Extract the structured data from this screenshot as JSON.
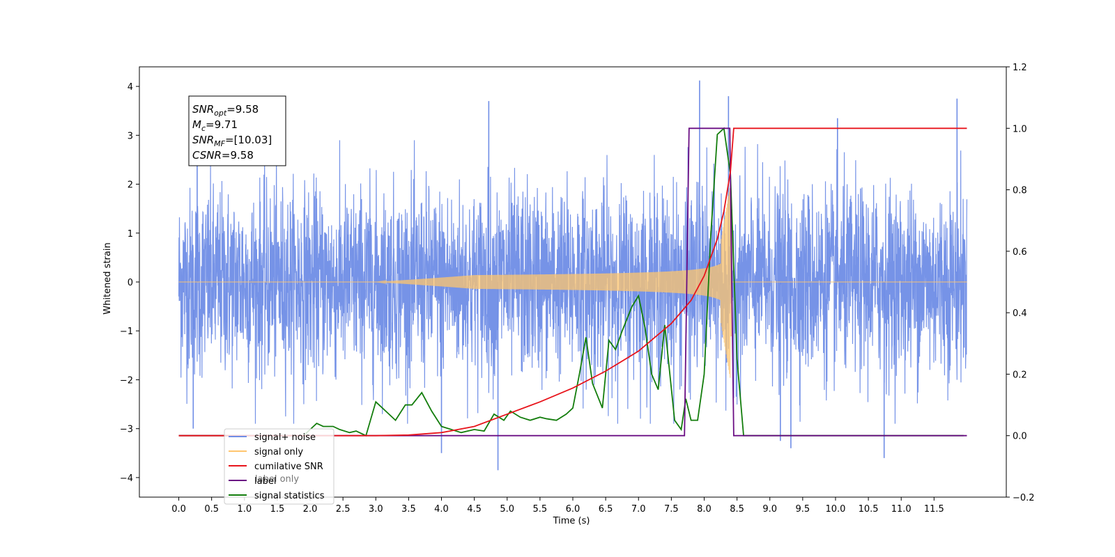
{
  "chart_data": {
    "type": "line",
    "xlabel": "Time (s)",
    "ylabel": "Whitened strain",
    "xlim": [
      -0.6,
      12.6
    ],
    "ylim": [
      -4.4,
      4.4
    ],
    "y2lim": [
      -0.2,
      1.2
    ],
    "x_ticks": [
      0.0,
      0.5,
      1.0,
      1.5,
      2.0,
      2.5,
      3.0,
      3.5,
      4.0,
      4.5,
      5.0,
      5.5,
      6.0,
      6.5,
      7.0,
      7.5,
      8.0,
      8.5,
      9.0,
      9.5,
      10.0,
      10.5,
      11.0,
      11.5
    ],
    "x_tick_labels": [
      "0.0",
      "0.5",
      "1.0",
      "1.5",
      "2.0",
      "2.5",
      "3.0",
      "3.5",
      "4.0",
      "4.5",
      "5.0",
      "5.5",
      "6.0",
      "6.5",
      "7.0",
      "7.5",
      "8.0",
      "8.5",
      "9.0",
      "9.5",
      "10.0",
      "10.5",
      "11.0",
      "11.5"
    ],
    "y_ticks": [
      -4,
      -3,
      -2,
      -1,
      0,
      1,
      2,
      3,
      4
    ],
    "y_tick_labels": [
      "−4",
      "−3",
      "−2",
      "−1",
      "0",
      "1",
      "2",
      "3",
      "4"
    ],
    "y2_ticks": [
      -0.2,
      0.0,
      0.2,
      0.4,
      0.6,
      0.8,
      1.0,
      1.2
    ],
    "y2_tick_labels": [
      "−0.2",
      "0.0",
      "0.2",
      "0.4",
      "0.6",
      "0.8",
      "1.0",
      "1.2"
    ],
    "legend_position": "lower-left",
    "legend": [
      {
        "label": "signal+ noise",
        "color": "#6f8de6"
      },
      {
        "label": "signal only",
        "color": "#ffc56e"
      },
      {
        "label": "cumilative SNR",
        "color": "#e8141b"
      },
      {
        "label": "label",
        "color": "#6a0d83"
      },
      {
        "label": "signal statistics",
        "color": "#137d0c"
      }
    ],
    "legend_ghost_text": [
      "label only",
      "signal statistics"
    ],
    "annotation_lines": [
      {
        "sym": "SNR",
        "sub": "opt",
        "rest": "=9.58"
      },
      {
        "sym": "M",
        "sub": "c",
        "rest": "=9.71"
      },
      {
        "sym": "SNR",
        "sub": "MF",
        "rest": "=[10.03]"
      },
      {
        "sym": "CSNR",
        "sub": "",
        "rest": "=9.58"
      }
    ],
    "series": [
      {
        "name": "signal+ noise",
        "axis": "left",
        "color": "#6f8de6",
        "description_values": {
          "x_range": [
            0.0,
            12.0
          ],
          "noise_band": [
            -2.0,
            2.0
          ],
          "spikes_max": 4.12,
          "spikes_min": -3.85
        },
        "spikes": [
          [
            0.28,
            3.0
          ],
          [
            0.22,
            -3.0
          ],
          [
            4.0,
            -3.5
          ],
          [
            4.86,
            -3.85
          ],
          [
            4.72,
            3.7
          ],
          [
            7.93,
            4.12
          ],
          [
            8.37,
            3.8
          ],
          [
            9.16,
            -3.25
          ],
          [
            9.32,
            -3.4
          ],
          [
            10.03,
            3.35
          ],
          [
            10.74,
            -3.6
          ],
          [
            11.85,
            3.75
          ]
        ]
      },
      {
        "name": "signal only",
        "axis": "left",
        "color": "#ffc56e",
        "chirp_envelope": {
          "start": 3.0,
          "merger": 8.4,
          "peak_amplitude": 2.0
        }
      },
      {
        "name": "cumilative SNR",
        "axis": "right",
        "x": [
          0.0,
          3.0,
          3.5,
          4.0,
          4.5,
          5.0,
          5.5,
          6.0,
          6.5,
          7.0,
          7.5,
          7.8,
          8.0,
          8.2,
          8.3,
          8.4,
          8.45,
          12.0
        ],
        "y": [
          0.0,
          0.0,
          0.002,
          0.01,
          0.03,
          0.07,
          0.11,
          0.155,
          0.21,
          0.275,
          0.365,
          0.44,
          0.52,
          0.64,
          0.73,
          0.86,
          1.0,
          1.0
        ]
      },
      {
        "name": "label",
        "axis": "right",
        "x": [
          0.0,
          7.7,
          7.77,
          8.39,
          8.45,
          12.0
        ],
        "y": [
          0.0,
          0.0,
          1.0,
          1.0,
          0.0,
          0.0
        ]
      },
      {
        "name": "signal statistics",
        "axis": "right",
        "x": [
          0.0,
          1.9,
          2.0,
          2.1,
          2.2,
          2.35,
          2.45,
          2.6,
          2.7,
          2.85,
          3.0,
          3.05,
          3.15,
          3.3,
          3.45,
          3.55,
          3.7,
          3.85,
          4.0,
          4.15,
          4.3,
          4.5,
          4.65,
          4.8,
          4.95,
          5.05,
          5.2,
          5.35,
          5.5,
          5.6,
          5.75,
          5.9,
          6.0,
          6.1,
          6.2,
          6.3,
          6.45,
          6.55,
          6.65,
          6.75,
          6.9,
          7.0,
          7.1,
          7.2,
          7.3,
          7.4,
          7.55,
          7.65,
          7.72,
          7.8,
          7.9,
          8.0,
          8.1,
          8.2,
          8.3,
          8.4,
          8.5,
          8.6,
          8.7,
          11.95
        ],
        "y": [
          0.0,
          0.0,
          0.02,
          0.04,
          0.03,
          0.03,
          0.02,
          0.01,
          0.015,
          0.0,
          0.11,
          0.1,
          0.08,
          0.05,
          0.1,
          0.1,
          0.14,
          0.08,
          0.03,
          0.02,
          0.01,
          0.02,
          0.015,
          0.07,
          0.05,
          0.08,
          0.06,
          0.05,
          0.06,
          0.055,
          0.05,
          0.07,
          0.09,
          0.2,
          0.32,
          0.17,
          0.09,
          0.31,
          0.28,
          0.34,
          0.42,
          0.455,
          0.35,
          0.2,
          0.15,
          0.36,
          0.05,
          0.02,
          0.12,
          0.05,
          0.05,
          0.2,
          0.65,
          0.98,
          1.0,
          0.85,
          0.25,
          0.0,
          0.0,
          0.0
        ]
      }
    ]
  }
}
